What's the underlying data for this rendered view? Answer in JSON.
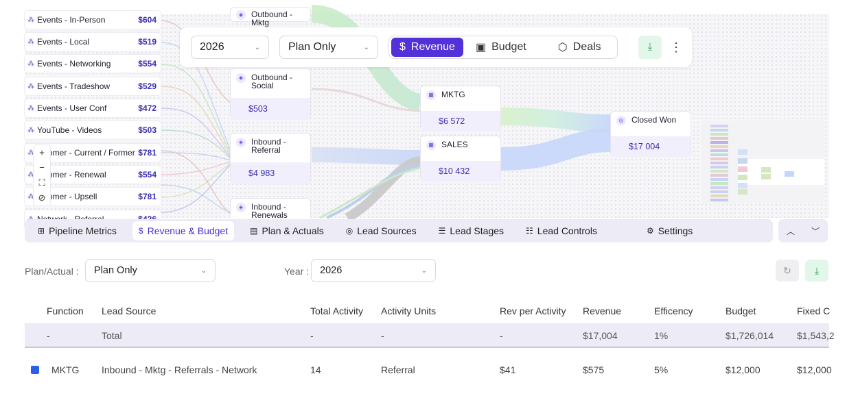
{
  "sources": [
    {
      "label": "Events - In-Person",
      "value": "$604"
    },
    {
      "label": "Events - Local",
      "value": "$519"
    },
    {
      "label": "Events - Networking",
      "value": "$554"
    },
    {
      "label": "Events - Tradeshow",
      "value": "$529"
    },
    {
      "label": "Events - User Conf",
      "value": "$472"
    },
    {
      "label": "YouTube - Videos",
      "value": "$503"
    },
    {
      "label": "ustomer - Current / Former",
      "value": "$781"
    },
    {
      "label": "ustomer - Renewal",
      "value": "$554"
    },
    {
      "label": "ustomer - Upsell",
      "value": "$781"
    },
    {
      "label": "Network - Referral",
      "value": "$426"
    }
  ],
  "nodes": {
    "outbound_mktg": {
      "title": "Outbound -\nMktg"
    },
    "outbound_social": {
      "title": "Outbound -\nSocial",
      "value": "$503"
    },
    "inbound_referral": {
      "title": "Inbound -\nReferral",
      "value": "$4 983"
    },
    "inbound_renewals": {
      "title": "Inbound -\nRenewals"
    },
    "mktg": {
      "title": "MKTG",
      "value": "$6 572"
    },
    "sales": {
      "title": "SALES",
      "value": "$10 432"
    },
    "closed_won": {
      "title": "Closed Won",
      "value": "$17 004"
    }
  },
  "toolbar": {
    "year": "2026",
    "plan": "Plan Only",
    "views": [
      {
        "label": "Revenue",
        "icon": "dollar-icon",
        "active": true
      },
      {
        "label": "Budget",
        "icon": "wallet-icon",
        "active": false
      },
      {
        "label": "Deals",
        "icon": "box-icon",
        "active": false
      }
    ]
  },
  "tabs": [
    {
      "label": "Pipeline Metrics",
      "icon": "grid-icon"
    },
    {
      "label": "Revenue & Budget",
      "icon": "dollar-icon",
      "active": true
    },
    {
      "label": "Plan & Actuals",
      "icon": "calendar-icon"
    },
    {
      "label": "Lead Sources",
      "icon": "target-icon"
    },
    {
      "label": "Lead Stages",
      "icon": "checklist-icon"
    },
    {
      "label": "Lead Controls",
      "icon": "sliders-icon"
    },
    {
      "label": "Settings",
      "icon": "gear-icon"
    }
  ],
  "filters": {
    "plan_label": "Plan/Actual :",
    "plan_value": "Plan Only",
    "year_label": "Year :",
    "year_value": "2026"
  },
  "table": {
    "headers": [
      "Function",
      "Lead Source",
      "Total Activity",
      "Activity Units",
      "Rev per Activity",
      "Revenue",
      "Efficency",
      "Budget",
      "Fixed C"
    ],
    "total_row": [
      "-",
      "Total",
      "-",
      "-",
      "-",
      "$17,004",
      "1%",
      "$1,726,014",
      "$1,543,2"
    ],
    "rows": [
      {
        "color": "#2c5fe6",
        "cells": [
          "MKTG",
          "Inbound - Mktg - Referrals - Network",
          "14",
          "Referral",
          "$41",
          "$575",
          "5%",
          "$12,000",
          "$12,000"
        ]
      }
    ]
  }
}
